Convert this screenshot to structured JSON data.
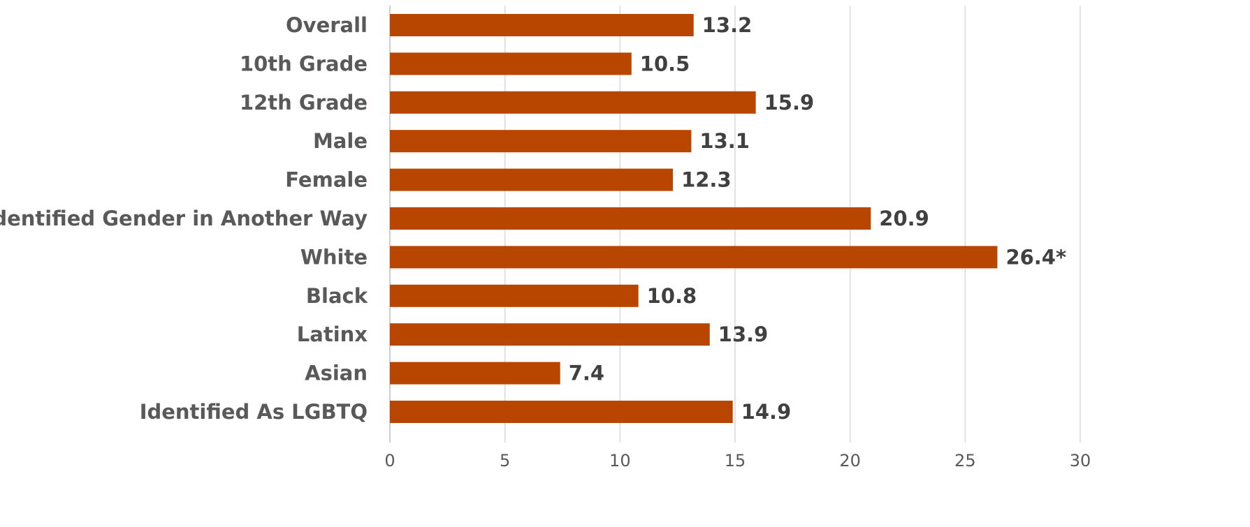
{
  "chart_data": {
    "type": "bar",
    "orientation": "horizontal",
    "categories": [
      "Overall",
      "10th Grade",
      "12th Grade",
      "Male",
      "Female",
      "Identified Gender in Another Way",
      "White",
      "Black",
      "Latinx",
      "Asian",
      "Identified As LGBTQ"
    ],
    "values": [
      13.2,
      10.5,
      15.9,
      13.1,
      12.3,
      20.9,
      26.4,
      10.8,
      13.9,
      7.4,
      14.9
    ],
    "value_labels": [
      "13.2",
      "10.5",
      "15.9",
      "13.1",
      "12.3",
      "20.9",
      "26.4*",
      "10.8",
      "13.9",
      "7.4",
      "14.9"
    ],
    "xlim": [
      0,
      30
    ],
    "xticks": [
      0,
      5,
      10,
      15,
      20,
      25,
      30
    ],
    "tick_labels": [
      "0",
      "5",
      "10",
      "15",
      "20",
      "25",
      "30"
    ],
    "grid": true,
    "bar_color": "#b94600",
    "title": "",
    "xlabel": "",
    "ylabel": ""
  }
}
